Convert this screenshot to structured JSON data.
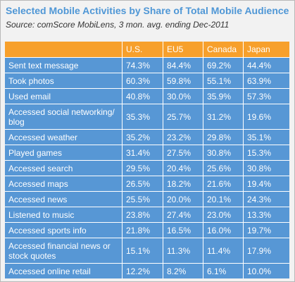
{
  "header": {
    "title": "Selected Mobile Activities by Share of Total Mobile Audience",
    "source": "Source: comScore MobiLens, 3 mon. avg. ending Dec-2011"
  },
  "table": {
    "columns": [
      "",
      "U.S.",
      "EU5",
      "Canada",
      "Japan"
    ],
    "rows": [
      [
        "Sent text message",
        "74.3%",
        "84.4%",
        "69.2%",
        "44.4%"
      ],
      [
        "Took photos",
        "60.3%",
        "59.8%",
        "55.1%",
        "63.9%"
      ],
      [
        "Used email",
        "40.8%",
        "30.0%",
        "35.9%",
        "57.3%"
      ],
      [
        "Accessed social networking/ blog",
        "35.3%",
        "25.7%",
        "31.2%",
        "19.6%"
      ],
      [
        "Accessed weather",
        "35.2%",
        "23.2%",
        "29.8%",
        "35.1%"
      ],
      [
        "Played games",
        "31.4%",
        "27.5%",
        "30.8%",
        "15.3%"
      ],
      [
        "Accessed search",
        "29.5%",
        "20.4%",
        "25.6%",
        "30.8%"
      ],
      [
        "Accessed maps",
        "26.5%",
        "18.2%",
        "21.6%",
        "19.4%"
      ],
      [
        "Accessed news",
        "25.5%",
        "20.0%",
        "20.1%",
        "24.3%"
      ],
      [
        "Listened to music",
        "23.8%",
        "27.4%",
        "23.0%",
        "13.3%"
      ],
      [
        "Accessed sports info",
        "21.8%",
        "16.5%",
        "16.0%",
        "19.7%"
      ],
      [
        "Accessed financial news or stock quotes",
        "15.1%",
        "11.3%",
        "11.4%",
        "17.9%"
      ],
      [
        "Accessed online retail",
        "12.2%",
        "8.2%",
        "6.1%",
        "10.0%"
      ]
    ]
  },
  "colors": {
    "title": "#4f97d6",
    "header_fill": "#f7a02c",
    "row_fill": "#5797d5",
    "background": "#f2f2f2"
  }
}
